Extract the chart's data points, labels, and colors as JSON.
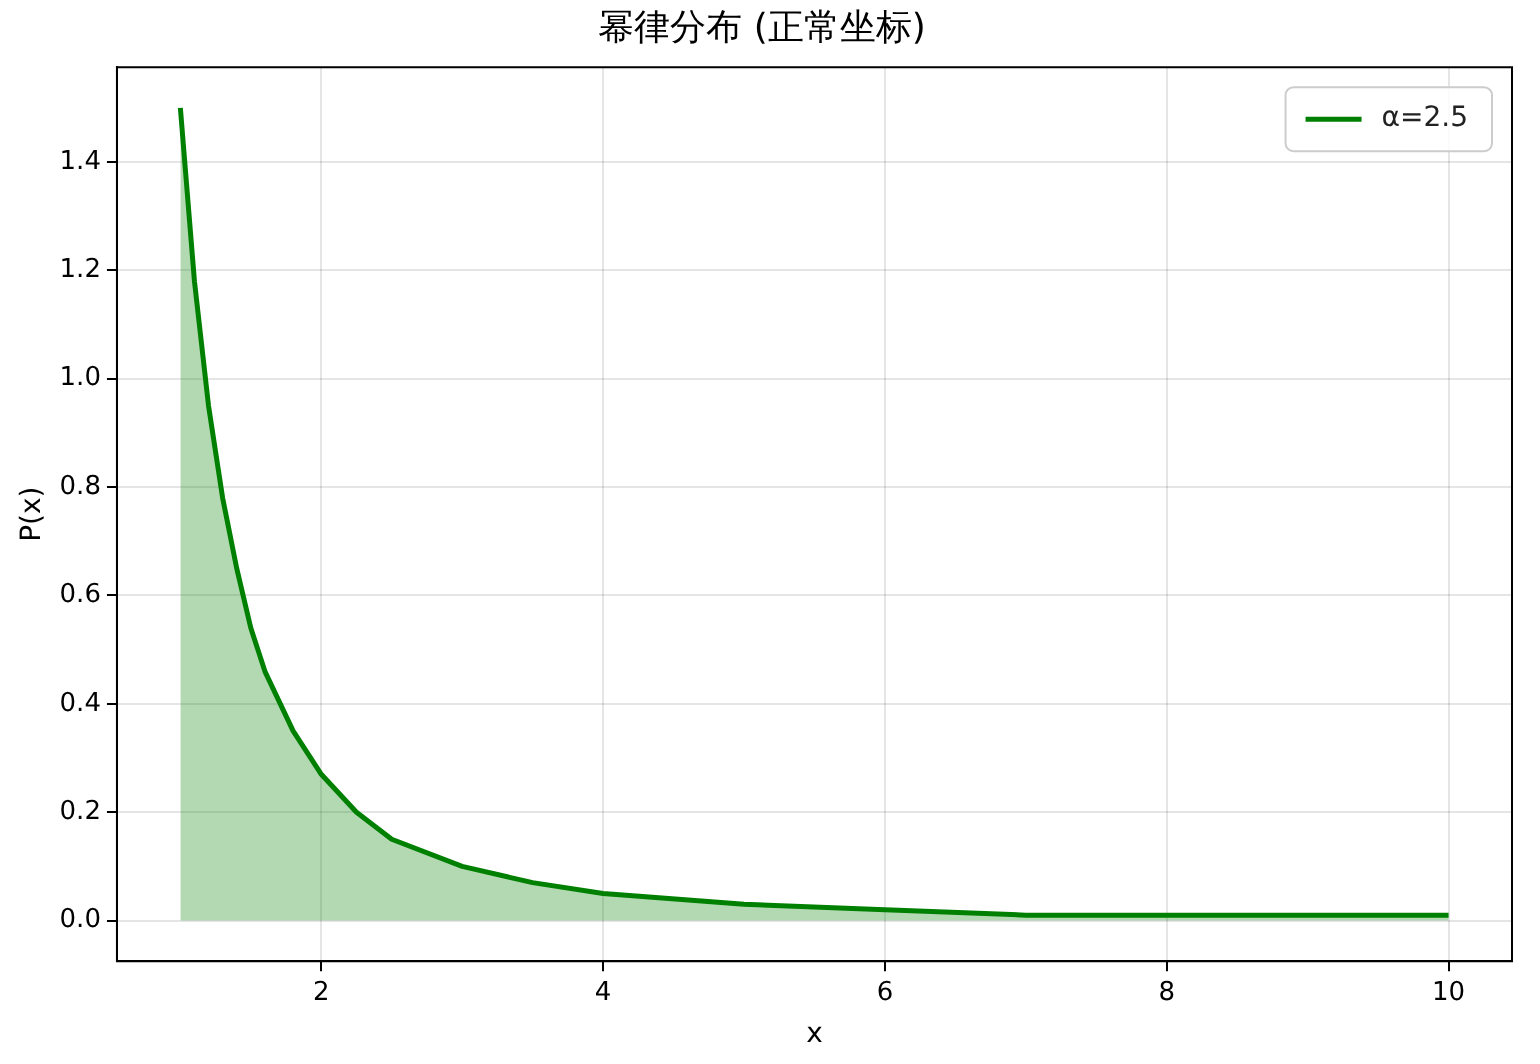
{
  "chart_data": {
    "type": "area",
    "title": "幂律分布 (正常坐标)",
    "xlabel": "x",
    "ylabel": "P(x)",
    "x": [
      1,
      1.1,
      1.2,
      1.3,
      1.4,
      1.5,
      1.6,
      1.8,
      2,
      2.25,
      2.5,
      3,
      3.5,
      4,
      5,
      6,
      7,
      8,
      9,
      10
    ],
    "series": [
      {
        "name": "α=2.5",
        "color": "#008000",
        "values": [
          1.5,
          1.18,
          0.95,
          0.78,
          0.65,
          0.54,
          0.46,
          0.35,
          0.27,
          0.2,
          0.15,
          0.1,
          0.07,
          0.05,
          0.03,
          0.02,
          0.01,
          0.01,
          0.01,
          0.01
        ]
      }
    ],
    "xlim": [
      0.55,
      10.45
    ],
    "xticks": [
      2,
      4,
      6,
      8,
      10
    ],
    "ylim": [
      -0.075,
      1.575
    ],
    "yticks": [
      {
        "value": 0,
        "label": "0.0"
      },
      {
        "value": 0.2,
        "label": "0.2"
      },
      {
        "value": 0.4,
        "label": "0.4"
      },
      {
        "value": 0.6,
        "label": "0.6"
      },
      {
        "value": 0.8,
        "label": "0.8"
      },
      {
        "value": 1.0,
        "label": "1.0"
      },
      {
        "value": 1.2,
        "label": "1.2"
      },
      {
        "value": 1.4,
        "label": "1.4"
      }
    ],
    "grid": true,
    "legend": "top right"
  }
}
